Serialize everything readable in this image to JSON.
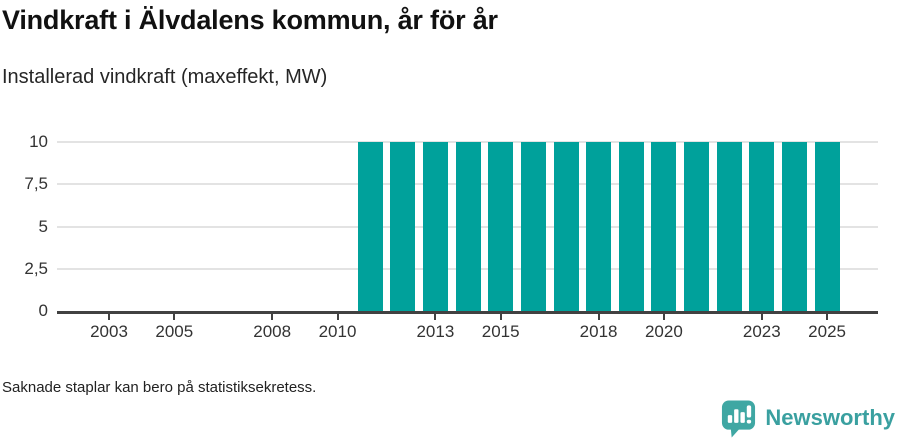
{
  "header": {
    "title": "Vindkraft i Älvdalens kommun, år för år",
    "subtitle": "Installerad vindkraft (maxeffekt, MW)"
  },
  "chart_data": {
    "type": "bar",
    "title": "Vindkraft i Älvdalens kommun, år för år",
    "subtitle": "Installerad vindkraft (maxeffekt, MW)",
    "x": [
      2011,
      2012,
      2013,
      2014,
      2015,
      2016,
      2017,
      2018,
      2019,
      2020,
      2021,
      2022,
      2023,
      2024,
      2025
    ],
    "values": [
      10,
      10,
      10,
      10,
      10,
      10,
      10,
      10,
      10,
      10,
      10,
      10,
      10,
      10,
      10
    ],
    "xlabel": "",
    "ylabel": "",
    "x_axis": {
      "range": [
        2001.4,
        2026.6
      ],
      "ticks": [
        2003,
        2005,
        2008,
        2010,
        2013,
        2015,
        2018,
        2020,
        2023,
        2025
      ],
      "tick_labels": [
        "2003",
        "2005",
        "2008",
        "2010",
        "2013",
        "2015",
        "2018",
        "2020",
        "2023",
        "2025"
      ]
    },
    "y_axis": {
      "range": [
        0,
        10
      ],
      "ticks": [
        0,
        2.5,
        5,
        7.5,
        10
      ],
      "tick_labels": [
        "0",
        "2,5",
        "5",
        "7,5",
        "10"
      ]
    },
    "grid": true,
    "legend": "none",
    "bar_color": "#00a19b"
  },
  "footer": {
    "note": "Saknade staplar kan bero på statistiksekretess.",
    "brand": "Newsworthy"
  },
  "icons": {
    "logo": "newsworthy-logo-icon"
  },
  "colors": {
    "bar": "#00a19b",
    "axis": "#414141",
    "grid": "#e3e3e3",
    "title": "#111111",
    "text": "#333333",
    "logo_icon": "#3fa7a3",
    "logo_text": "#3aa0a0",
    "background": "#ffffff"
  }
}
